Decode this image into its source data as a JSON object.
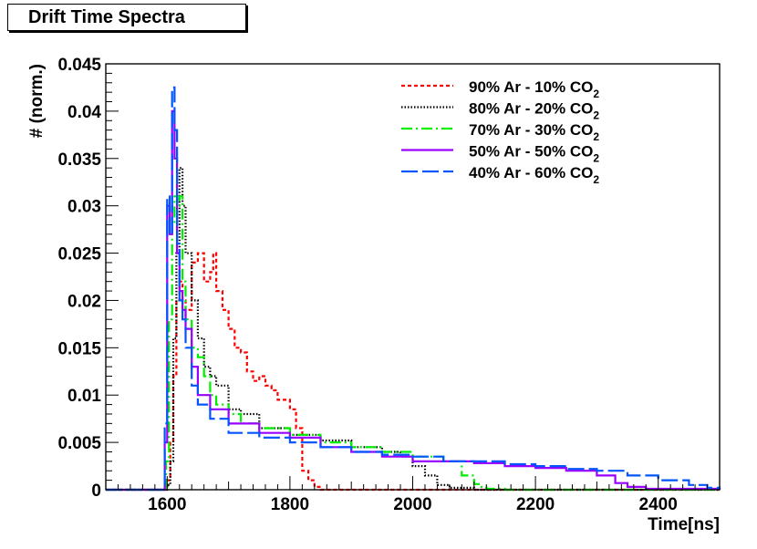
{
  "chart_data": {
    "type": "line",
    "title": "Drift Time Spectra",
    "xlabel": "Time[ns]",
    "ylabel": "# (norm.)",
    "xlim": [
      1500,
      2500
    ],
    "ylim": [
      0,
      0.045
    ],
    "x_ticks": [
      1600,
      1800,
      2000,
      2200,
      2400
    ],
    "y_ticks": [
      0,
      0.005,
      0.01,
      0.015,
      0.02,
      0.025,
      0.03,
      0.035,
      0.04,
      0.045
    ],
    "x_tick_labels": [
      "1600",
      "1800",
      "2000",
      "2200",
      "2400"
    ],
    "y_tick_labels": [
      "0",
      "0.005",
      "0.01",
      "0.015",
      "0.02",
      "0.025",
      "0.03",
      "0.035",
      "0.04",
      "0.045"
    ],
    "legend_position": "top-right",
    "series": [
      {
        "name": "90% Ar - 10% CO2",
        "label_main": "90% Ar - 10% CO",
        "label_sub": "2",
        "color": "#ff0000",
        "dash": "4,3",
        "x": [
          1500,
          1590,
          1600,
          1605,
          1610,
          1615,
          1620,
          1625,
          1630,
          1640,
          1650,
          1655,
          1660,
          1670,
          1675,
          1680,
          1690,
          1700,
          1710,
          1720,
          1730,
          1740,
          1750,
          1760,
          1770,
          1780,
          1790,
          1800,
          1810,
          1820,
          1830,
          1840,
          1850,
          1900,
          2000,
          2200,
          2500
        ],
        "y": [
          0,
          0,
          0.001,
          0.005,
          0.012,
          0.02,
          0.022,
          0.02,
          0.019,
          0.024,
          0.025,
          0.025,
          0.022,
          0.023,
          0.025,
          0.021,
          0.019,
          0.017,
          0.015,
          0.0145,
          0.0125,
          0.0115,
          0.012,
          0.011,
          0.0105,
          0.0095,
          0.0095,
          0.0085,
          0.0065,
          0.002,
          0.001,
          0.0003,
          0,
          0,
          0,
          0,
          0
        ]
      },
      {
        "name": "80% Ar - 20% CO2",
        "label_main": "80% Ar - 20% CO",
        "label_sub": "2",
        "color": "#000000",
        "dash": "1.5,2",
        "x": [
          1500,
          1590,
          1600,
          1605,
          1610,
          1615,
          1620,
          1625,
          1630,
          1640,
          1650,
          1660,
          1670,
          1680,
          1700,
          1720,
          1750,
          1800,
          1850,
          1900,
          1950,
          1980,
          2000,
          2020,
          2040,
          2060,
          2100,
          2500
        ],
        "y": [
          0,
          0,
          0.0005,
          0.003,
          0.016,
          0.025,
          0.034,
          0.03,
          0.025,
          0.02,
          0.016,
          0.013,
          0.012,
          0.011,
          0.0085,
          0.008,
          0.0065,
          0.0058,
          0.0052,
          0.0045,
          0.004,
          0.0035,
          0.0025,
          0.0015,
          0.0005,
          0.0002,
          0,
          0
        ]
      },
      {
        "name": "70% Ar - 30% CO2",
        "label_main": "70% Ar - 30% CO",
        "label_sub": "2",
        "color": "#00ee00",
        "dash": "12,4,2,4",
        "x": [
          1500,
          1590,
          1598,
          1603,
          1608,
          1612,
          1616,
          1620,
          1625,
          1630,
          1640,
          1650,
          1660,
          1670,
          1680,
          1700,
          1720,
          1750,
          1800,
          1850,
          1900,
          1950,
          2000,
          2050,
          2080,
          2100,
          2110,
          2120,
          2150,
          2500
        ],
        "y": [
          0,
          0,
          0.003,
          0.018,
          0.028,
          0.031,
          0.03,
          0.031,
          0.022,
          0.018,
          0.015,
          0.014,
          0.012,
          0.01,
          0.009,
          0.008,
          0.007,
          0.0065,
          0.0058,
          0.005,
          0.0045,
          0.004,
          0.0035,
          0.003,
          0.0015,
          0.0006,
          0.0003,
          0.0001,
          0,
          0
        ]
      },
      {
        "name": "50% Ar - 50% CO2",
        "label_main": "50% Ar - 50% CO",
        "label_sub": "2",
        "color": "#9900ff",
        "dash": "",
        "x": [
          1500,
          1590,
          1596,
          1600,
          1604,
          1608,
          1612,
          1616,
          1620,
          1625,
          1630,
          1640,
          1650,
          1670,
          1700,
          1750,
          1800,
          1850,
          1900,
          1950,
          2000,
          2050,
          2100,
          2150,
          2200,
          2250,
          2300,
          2330,
          2350,
          2380,
          2500
        ],
        "y": [
          0,
          0,
          0.005,
          0.03,
          0.027,
          0.04,
          0.035,
          0.025,
          0.021,
          0.019,
          0.017,
          0.013,
          0.01,
          0.0085,
          0.007,
          0.006,
          0.0055,
          0.0045,
          0.004,
          0.0035,
          0.003,
          0.003,
          0.0028,
          0.0025,
          0.0023,
          0.002,
          0.0015,
          0.0007,
          0.0003,
          0.0001,
          0
        ]
      },
      {
        "name": "40% Ar - 60% CO2",
        "label_main": "40% Ar - 60% CO",
        "label_sub": "2",
        "color": "#0055ff",
        "dash": "18,5",
        "x": [
          1500,
          1590,
          1596,
          1600,
          1604,
          1608,
          1612,
          1616,
          1620,
          1625,
          1630,
          1640,
          1650,
          1670,
          1700,
          1750,
          1800,
          1850,
          1900,
          1950,
          2000,
          2050,
          2100,
          2150,
          2200,
          2250,
          2300,
          2350,
          2400,
          2450,
          2480,
          2500
        ],
        "y": [
          0,
          0,
          0.007,
          0.031,
          0.027,
          0.0425,
          0.038,
          0.026,
          0.02,
          0.018,
          0.015,
          0.011,
          0.009,
          0.0075,
          0.006,
          0.0055,
          0.005,
          0.0045,
          0.004,
          0.0037,
          0.0035,
          0.003,
          0.003,
          0.0027,
          0.0025,
          0.0022,
          0.002,
          0.0015,
          0.001,
          0.0005,
          0.0002,
          0
        ]
      }
    ]
  }
}
